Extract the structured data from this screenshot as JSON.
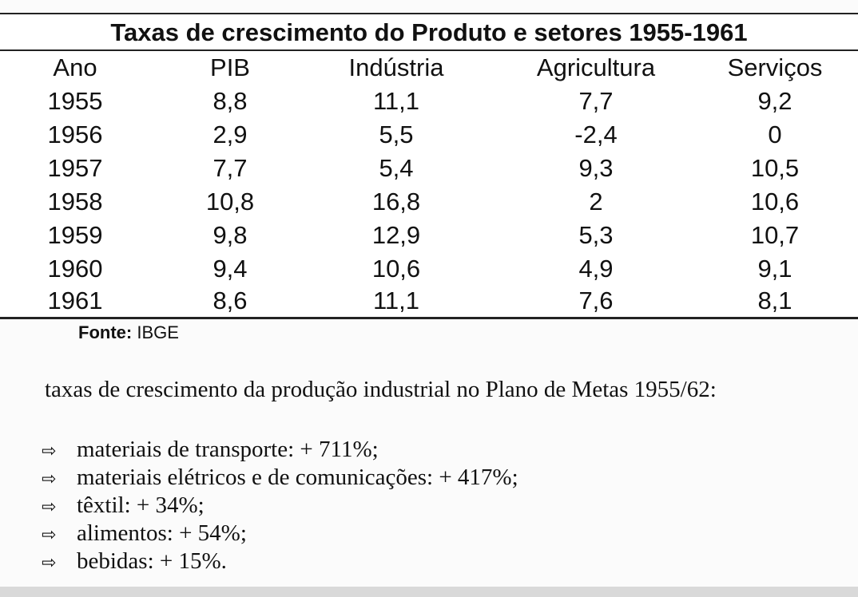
{
  "table": {
    "title": "Taxas de crescimento do Produto e setores 1955-1961",
    "columns": [
      "Ano",
      "PIB",
      "Indústria",
      "Agricultura",
      "Serviços"
    ],
    "rows": [
      [
        "1955",
        "8,8",
        "11,1",
        "7,7",
        "9,2"
      ],
      [
        "1956",
        "2,9",
        "5,5",
        "-2,4",
        "0"
      ],
      [
        "1957",
        "7,7",
        "5,4",
        "9,3",
        "10,5"
      ],
      [
        "1958",
        "10,8",
        "16,8",
        "2",
        "10,6"
      ],
      [
        "1959",
        "9,8",
        "12,9",
        "5,3",
        "10,7"
      ],
      [
        "1960",
        "9,4",
        "10,6",
        "4,9",
        "9,1"
      ],
      [
        "1961",
        "8,6",
        "11,1",
        "7,6",
        "8,1"
      ]
    ]
  },
  "source": {
    "label": "Fonte:",
    "value": "IBGE"
  },
  "notes": {
    "title": "taxas de crescimento da produção industrial no Plano de Metas 1955/62:",
    "bullet_icon": "right-arrow-outline",
    "items": [
      "materiais de transporte: + 711%;",
      "materiais elétricos e de comunicações: + 417%;",
      "têxtil: + 34%;",
      "alimentos: + 54%;",
      "bebidas:  + 15%."
    ]
  }
}
